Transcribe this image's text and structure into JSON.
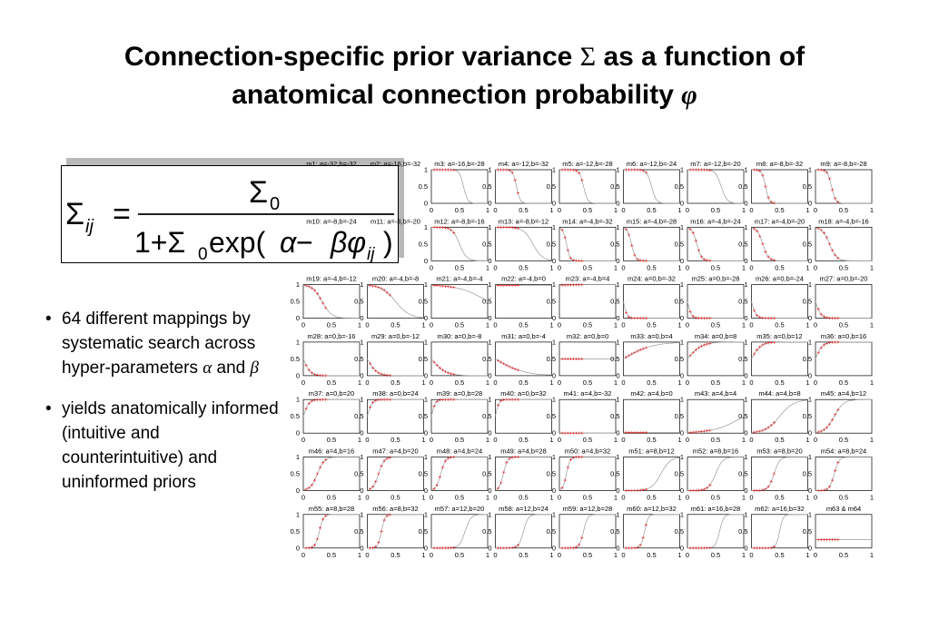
{
  "title": {
    "line1_prefix": "Connection-specific prior variance ",
    "line1_symbol": "Σ",
    "line1_suffix": " as a function of",
    "line2_prefix": "anatomical connection probability ",
    "line2_symbol": "φ"
  },
  "formula": {
    "lhs": "Σ",
    "lhs_sub": "ij",
    "equals": "=",
    "numerator": "Σ",
    "numerator_sub": "0",
    "den_one_plus": "1+Σ",
    "den_sub0": "0",
    "den_exp": " exp(",
    "den_alpha": "α",
    "den_minus": " − ",
    "den_beta_phi": "βφ",
    "den_sub_ij": "ij",
    "den_close": ")"
  },
  "bullets": [
    {
      "pre": "64 different mappings by systematic search across hyper-parameters ",
      "alpha": "α",
      "mid": " and ",
      "beta": "β"
    },
    {
      "text": "yields anatomically informed (intuitive and counterintuitive) and uninformed priors"
    }
  ],
  "chart_data": {
    "type": "line",
    "ylim": [
      0,
      1
    ],
    "xlim": [
      0,
      1
    ],
    "yticks": [
      "1",
      "0.5",
      "0"
    ],
    "xticks": [
      "0",
      "0.5",
      "1"
    ],
    "panels": [
      {
        "label": "m1: a=-32,b=-32"
      },
      {
        "label": "m2: a=-16,b=-32"
      },
      {
        "label": "m3: a=-16,b=-28"
      },
      {
        "label": "m4: a=-12,b=-32"
      },
      {
        "label": "m5: a=-12,b=-28"
      },
      {
        "label": "m6: a=-12,b=-24"
      },
      {
        "label": "m7: a=-12,b=-20"
      },
      {
        "label": "m8: a=-8,b=-32"
      },
      {
        "label": "m9: a=-8,b=-28"
      },
      {
        "label": "m10: a=-8,b=-24"
      },
      {
        "label": "m11: a=-8,b=-20"
      },
      {
        "label": "m12: a=-8,b=-16"
      },
      {
        "label": "m13: a=-8,b=-12"
      },
      {
        "label": "m14: a=-4,b=-32"
      },
      {
        "label": "m15: a=-4,b=-28"
      },
      {
        "label": "m16: a=-4,b=-24"
      },
      {
        "label": "m17: a=-4,b=-20"
      },
      {
        "label": "m18: a=-4,b=-16"
      },
      {
        "label": "m19: a=-4,b=-12"
      },
      {
        "label": "m20: a=-4,b=-8"
      },
      {
        "label": "m21: a=-4,b=-4"
      },
      {
        "label": "m22: a=-4,b=0"
      },
      {
        "label": "m23: a=-4,b=4"
      },
      {
        "label": "m24: a=0,b=-32"
      },
      {
        "label": "m25: a=0,b=-28"
      },
      {
        "label": "m26: a=0,b=-24"
      },
      {
        "label": "m27: a=0,b=-20"
      },
      {
        "label": "m28: a=0,b=-16"
      },
      {
        "label": "m29: a=0,b=-12"
      },
      {
        "label": "m30: a=0,b=-8"
      },
      {
        "label": "m31: a=0,b=-4"
      },
      {
        "label": "m32: a=0,b=0"
      },
      {
        "label": "m33: a=0,b=4"
      },
      {
        "label": "m34: a=0,b=8"
      },
      {
        "label": "m35: a=0,b=12"
      },
      {
        "label": "m36: a=0,b=16"
      },
      {
        "label": "m37: a=0,b=20"
      },
      {
        "label": "m38: a=0,b=24"
      },
      {
        "label": "m39: a=0,b=28"
      },
      {
        "label": "m40: a=0,b=32"
      },
      {
        "label": "m41: a=4,b=-32"
      },
      {
        "label": "m42: a=4,b=0"
      },
      {
        "label": "m43: a=4,b=4"
      },
      {
        "label": "m44: a=4,b=8"
      },
      {
        "label": "m45: a=4,b=12"
      },
      {
        "label": "m46: a=4,b=16"
      },
      {
        "label": "m47: a=4,b=20"
      },
      {
        "label": "m48: a=4,b=24"
      },
      {
        "label": "m49: a=4,b=28"
      },
      {
        "label": "m50: a=4,b=32"
      },
      {
        "label": "m51: a=8,b=12"
      },
      {
        "label": "m52: a=8,b=16"
      },
      {
        "label": "m53: a=8,b=20"
      },
      {
        "label": "m54: a=8,b=24"
      },
      {
        "label": "m55: a=8,b=28"
      },
      {
        "label": "m56: a=8,b=32"
      },
      {
        "label": "m57: a=12,b=20"
      },
      {
        "label": "m58: a=12,b=24"
      },
      {
        "label": "m59: a=12,b=28"
      },
      {
        "label": "m60: a=12,b=32"
      },
      {
        "label": "m61: a=16,b=28"
      },
      {
        "label": "m62: a=16,b=32"
      },
      {
        "label": "m63 & m64"
      }
    ],
    "colors": {
      "curve": "#9a9a9a",
      "points": "#e02020",
      "axes": "#000000"
    }
  }
}
